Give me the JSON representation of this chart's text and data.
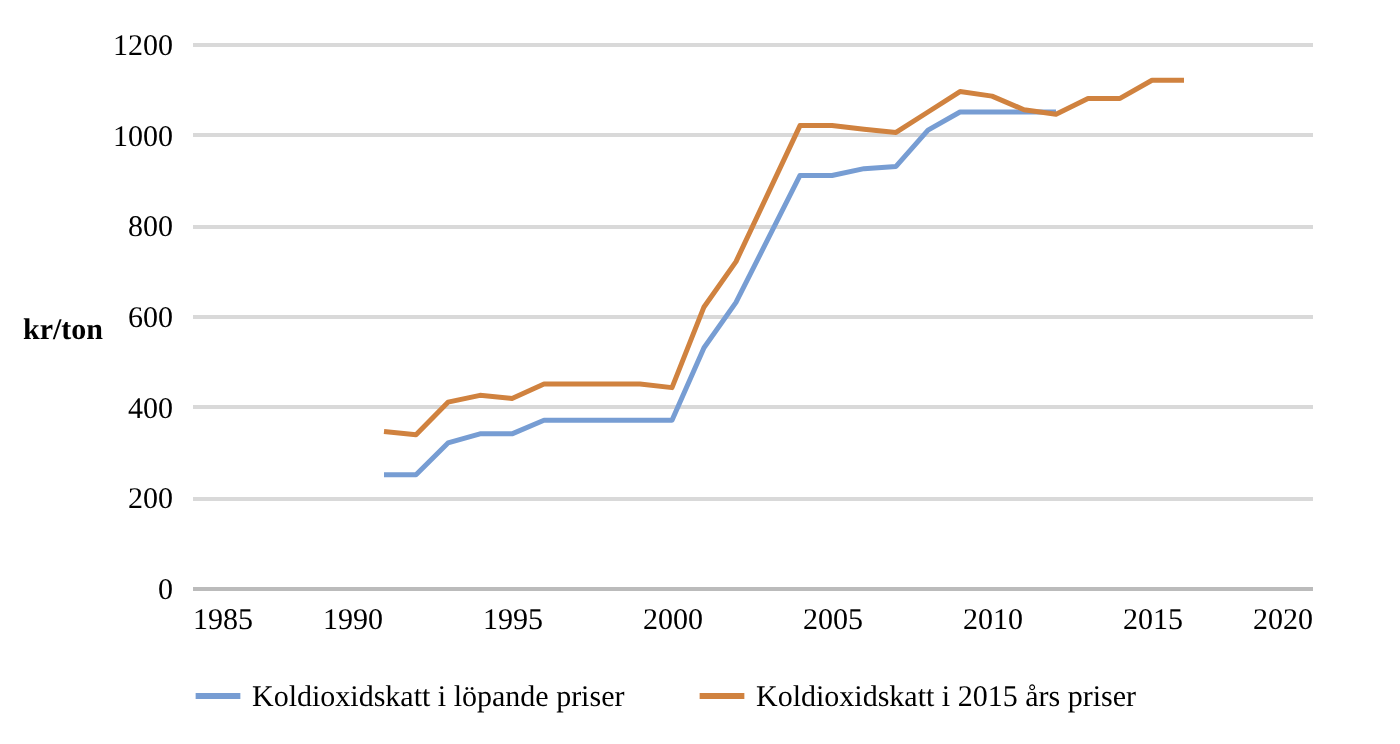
{
  "chart_data": {
    "type": "line",
    "ylabel": "kr/ton",
    "x": [
      1991,
      1992,
      1993,
      1994,
      1995,
      1996,
      1997,
      1998,
      1999,
      2000,
      2001,
      2002,
      2003,
      2004,
      2005,
      2006,
      2007,
      2008,
      2009,
      2010,
      2011,
      2012,
      2013,
      2014,
      2015,
      2016
    ],
    "series": [
      {
        "name": "Koldioxidskatt i löpande priser",
        "color": "#779dd3",
        "values": [
          250,
          250,
          320,
          340,
          340,
          370,
          370,
          370,
          370,
          370,
          530,
          630,
          770,
          910,
          910,
          925,
          930,
          1010,
          1050,
          1050,
          1050,
          1050,
          null,
          null,
          null,
          null
        ]
      },
      {
        "name": "Koldioxidskatt i 2015 års priser",
        "color": "#d0823f",
        "values": [
          345,
          338,
          410,
          425,
          418,
          450,
          450,
          450,
          450,
          442,
          620,
          720,
          870,
          1020,
          1020,
          1012,
          1005,
          1050,
          1095,
          1085,
          1055,
          1045,
          1080,
          1080,
          1120,
          1120
        ]
      }
    ],
    "xlim": [
      1985,
      2020
    ],
    "xticks": [
      1985,
      1990,
      1995,
      2000,
      2005,
      2010,
      2015,
      2020
    ],
    "ylim": [
      0,
      1200
    ],
    "yticks": [
      0,
      200,
      400,
      600,
      800,
      1000,
      1200
    ],
    "grid": "y",
    "legend": "bottom",
    "marker": "none",
    "line_style": "solid"
  }
}
